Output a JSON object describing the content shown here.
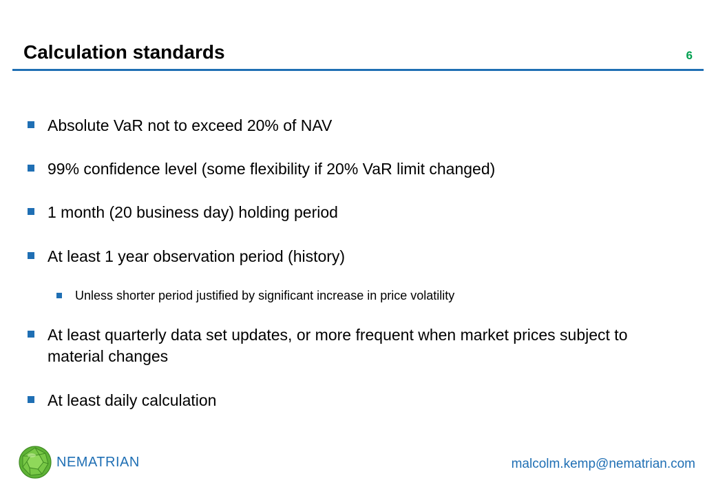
{
  "slide": {
    "title": "Calculation standards",
    "page_number": "6"
  },
  "bullets": [
    {
      "text": "Absolute VaR not to exceed 20% of NAV"
    },
    {
      "text": "99% confidence level (some flexibility if 20% VaR limit changed)"
    },
    {
      "text": "1 month (20 business day) holding period"
    },
    {
      "text": "At least 1 year observation period (history)"
    },
    {
      "text": "At least quarterly data set updates, or more frequent when market prices subject to material changes"
    },
    {
      "text": "At least daily calculation"
    }
  ],
  "sub_bullets": [
    {
      "text": "Unless shorter period justified by significant increase in price volatility"
    }
  ],
  "footer": {
    "brand": "NEMATRIAN",
    "email": "malcolm.kemp@nematrian.com",
    "logo_icon": "green-polyhedron-logo-icon"
  },
  "colors": {
    "accent": "#1f6fb4",
    "page_number": "#00a050",
    "logo_green": "#6cc03c"
  }
}
